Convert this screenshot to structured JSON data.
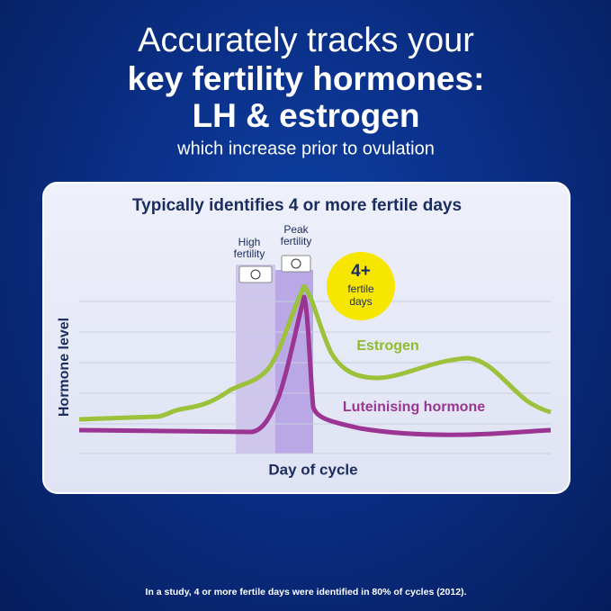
{
  "headline": {
    "lines": [
      "Accurately tracks your",
      "key fertility hormones:",
      "LH & estrogen"
    ],
    "subtitle": "which increase prior to ovulation"
  },
  "card": {
    "title": "Typically identifies 4 or more fertile days",
    "bands": [
      {
        "label_lines": [
          "High",
          "fertility"
        ]
      },
      {
        "label_lines": [
          "Peak",
          "fertility"
        ]
      }
    ],
    "badge": {
      "lines": [
        "4+",
        "fertile",
        "days"
      ]
    },
    "curves": [
      {
        "name": "Estrogen"
      },
      {
        "name": "Luteinising hormone"
      }
    ],
    "y_label": "Hormone level",
    "x_label": "Day of cycle"
  },
  "footnote": "In a study, 4 or more fertile days were identified in 80% of cycles (2012)."
}
